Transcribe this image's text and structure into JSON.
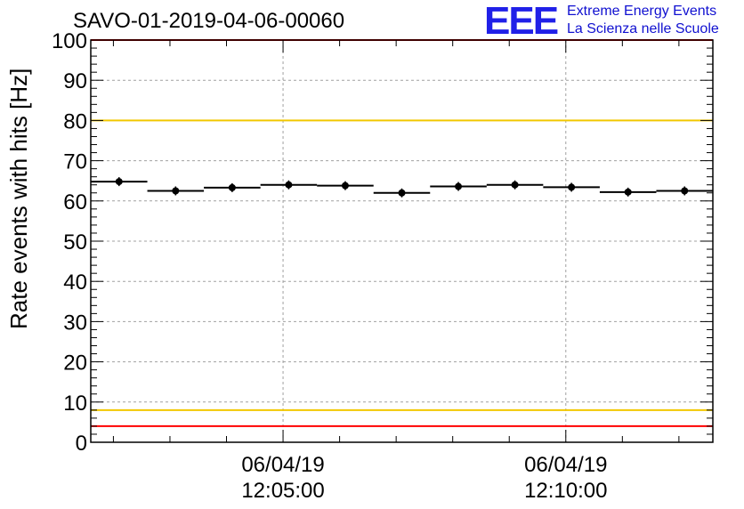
{
  "header": {
    "run_title": "SAVO-01-2019-04-06-00060"
  },
  "logo": {
    "mark": "EEE",
    "line1": "Extreme Energy Events",
    "line2": "La Scienza nelle Scuole",
    "color": "#2020e8"
  },
  "chart_data": {
    "type": "scatter",
    "title": "SAVO-01-2019-04-06-00060",
    "ylabel": "Rate events with hits [Hz]",
    "xlabel": "",
    "ylim": [
      0,
      100
    ],
    "y_ticks": [
      0,
      10,
      20,
      30,
      40,
      50,
      60,
      70,
      80,
      90,
      100
    ],
    "x_unit_note": "minutes after 12:00:00 on 06/04/19",
    "xlim": [
      1.6,
      12.6
    ],
    "x_ticks": [
      {
        "x": 5,
        "date": "06/04/19",
        "time": "12:05:00"
      },
      {
        "x": 10,
        "date": "06/04/19",
        "time": "12:10:00"
      }
    ],
    "bin_width": 1,
    "series": [
      {
        "x": [
          2.1,
          3.1,
          4.1,
          5.1,
          6.1,
          7.1,
          8.1,
          9.1,
          10.1,
          11.1,
          12.1
        ],
        "values": [
          64.8,
          62.5,
          63.3,
          64.0,
          63.8,
          62.0,
          63.6,
          64.0,
          63.4,
          62.2,
          62.5
        ]
      }
    ],
    "reference_lines": [
      {
        "y": 100,
        "color": "#ff0000"
      },
      {
        "y": 80,
        "color": "#f2c800"
      },
      {
        "y": 8,
        "color": "#f2c800"
      },
      {
        "y": 4,
        "color": "#ff0000"
      }
    ],
    "grid": true
  }
}
